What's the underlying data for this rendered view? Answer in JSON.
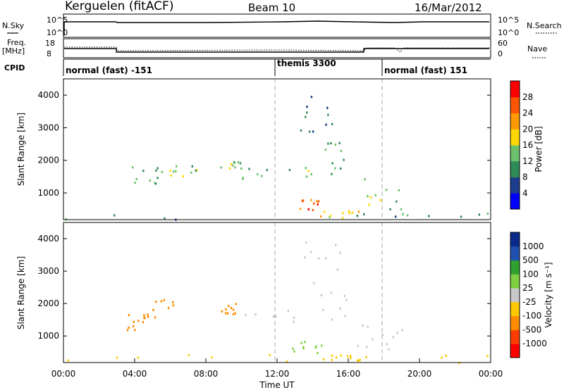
{
  "header": {
    "station": "Kerguelen (fitACF)",
    "beam": "Beam 10",
    "date": "16/Mar/2012"
  },
  "params_panel": {
    "nsky_label": "N.Sky",
    "nsearch_label": "N.Search",
    "freq_label_1": "Freq.",
    "freq_label_2": "[MHz]",
    "nave_label": "Nave",
    "left_ticks_top": [
      "10^5",
      "10^0"
    ],
    "right_ticks_top": [
      "10^5",
      "10^0"
    ],
    "left_ticks_freq": [
      "18",
      "8"
    ],
    "right_ticks_nave": [
      "60",
      "0"
    ]
  },
  "cpid": {
    "label": "CPID",
    "segments": [
      {
        "name": "normal (fast) -151",
        "start_hour": 0,
        "end_hour": 12
      },
      {
        "name": "themis 3300",
        "start_hour": 12,
        "end_hour": 18
      },
      {
        "name": "normal (fast) 151",
        "start_hour": 18,
        "end_hour": 24
      }
    ]
  },
  "colors": {
    "power": [
      "#0000ff",
      "#1e3c8c",
      "#2e8b57",
      "#6cc06c",
      "#ffd700",
      "#ff9900",
      "#ff5500",
      "#ff0000"
    ],
    "velocity": [
      "#ff0000",
      "#ff3c00",
      "#ff8c00",
      "#ffc800",
      "#c8c8c8",
      "#7fd040",
      "#30a030",
      "#2050b0",
      "#0a2a8c"
    ]
  },
  "chart_data": [
    {
      "type": "heatmap",
      "title": "",
      "xlabel": "",
      "ylabel": "Slant Range [km]",
      "xlim": [
        0,
        24
      ],
      "ylim": [
        180,
        4500
      ],
      "yticks": [
        1000,
        2000,
        3000,
        4000
      ],
      "colorbar": {
        "label": "Power [dB]",
        "ticks": [
          "4",
          "8",
          "12",
          "16",
          "20",
          "24",
          "28"
        ],
        "range": [
          0,
          32
        ]
      },
      "regions": [
        {
          "t": [
            3.5,
            5.5
          ],
          "r": [
            1200,
            1900
          ],
          "v": 12
        },
        {
          "t": [
            5.5,
            7.5
          ],
          "r": [
            1500,
            2000
          ],
          "v": 15
        },
        {
          "t": [
            8.8,
            10.0
          ],
          "r": [
            1700,
            2100
          ],
          "v": 14
        },
        {
          "t": [
            10.0,
            14.5
          ],
          "r": [
            1350,
            1800
          ],
          "v": 13
        },
        {
          "t": [
            14.5,
            16.0
          ],
          "r": [
            1600,
            3000
          ],
          "v": 10
        },
        {
          "t": [
            13.0,
            15.5
          ],
          "r": [
            2800,
            4000
          ],
          "v": 8
        },
        {
          "t": [
            16.0,
            19.0
          ],
          "r": [
            500,
            1500
          ],
          "v": 14
        },
        {
          "t": [
            13.0,
            14.3
          ],
          "r": [
            500,
            850
          ],
          "v": 25
        },
        {
          "t": [
            14.3,
            17.0
          ],
          "r": [
            250,
            500
          ],
          "v": 19
        },
        {
          "t": [
            0.0,
            24.0
          ],
          "r": [
            200,
            450
          ],
          "v": 10
        }
      ]
    },
    {
      "type": "heatmap",
      "title": "",
      "xlabel": "Time UT",
      "ylabel": "Slant Range [km]",
      "xlim": [
        0,
        24
      ],
      "ylim": [
        180,
        4500
      ],
      "xticks": [
        "00:00",
        "04:00",
        "08:00",
        "12:00",
        "16:00",
        "20:00",
        "00:00"
      ],
      "yticks": [
        1000,
        2000,
        3000,
        4000
      ],
      "colorbar": {
        "label": "Velocity [m s⁻¹]",
        "ticks": [
          "1000",
          "500",
          "100",
          "25",
          "-25",
          "-100",
          "-500",
          "-1000"
        ]
      },
      "regions": [
        {
          "t": [
            3.5,
            4.5
          ],
          "r": [
            1200,
            1800
          ],
          "v": -300
        },
        {
          "t": [
            4.5,
            6.8
          ],
          "r": [
            1500,
            2200
          ],
          "v": -400
        },
        {
          "t": [
            8.8,
            9.7
          ],
          "r": [
            1700,
            2100
          ],
          "v": -300
        },
        {
          "t": [
            10.0,
            16.0
          ],
          "r": [
            1400,
            1900
          ],
          "v": 0
        },
        {
          "t": [
            13.5,
            16.0
          ],
          "r": [
            1800,
            4000
          ],
          "v": 0
        },
        {
          "t": [
            12.8,
            14.5
          ],
          "r": [
            500,
            900
          ],
          "v": 60
        },
        {
          "t": [
            14.5,
            17.0
          ],
          "r": [
            250,
            450
          ],
          "v": -60
        },
        {
          "t": [
            16.0,
            19.0
          ],
          "r": [
            600,
            1400
          ],
          "v": 0
        },
        {
          "t": [
            0.0,
            24.0
          ],
          "r": [
            200,
            450
          ],
          "v": -60
        }
      ]
    }
  ]
}
